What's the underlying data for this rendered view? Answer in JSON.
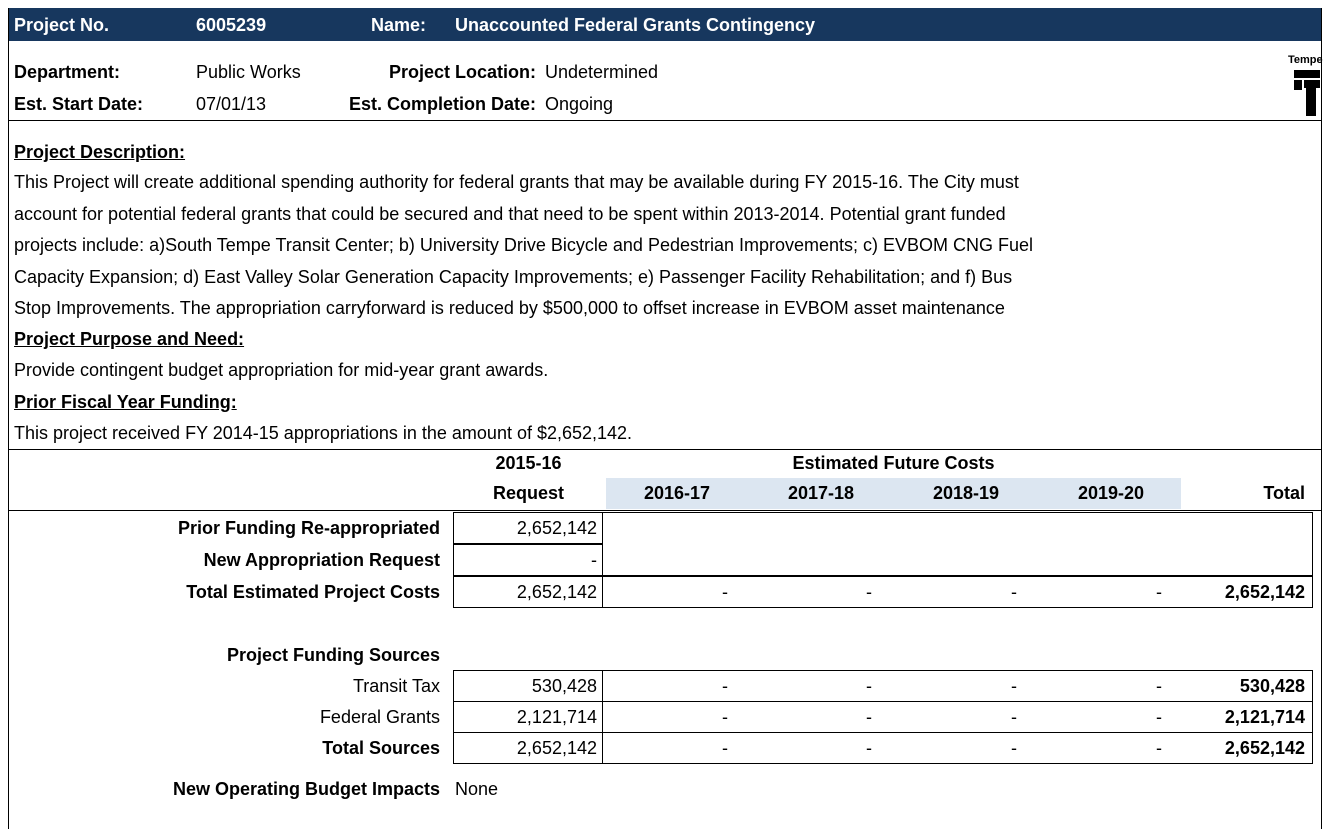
{
  "header": {
    "project_no_label": "Project No.",
    "project_no": "6005239",
    "name_label": "Name:",
    "name": "Unaccounted Federal Grants Contingency"
  },
  "info": {
    "department_label": "Department:",
    "department": "Public Works",
    "location_label": "Project Location:",
    "location": "Undetermined",
    "start_label": "Est. Start Date:",
    "start": "07/01/13",
    "completion_label": "Est. Completion Date:",
    "completion": "Ongoing",
    "logo": "Tempe"
  },
  "description": {
    "heading": "Project Description:",
    "lines": [
      "This Project will create additional spending authority for federal grants that may be available during FY 2015-16.  The City must",
      "account for potential federal grants that could be secured and that need to be spent within 2013-2014.  Potential grant funded",
      "projects include: a)South Tempe Transit Center; b) University Drive Bicycle and Pedestrian Improvements; c) EVBOM CNG Fuel",
      "Capacity Expansion; d) East Valley Solar Generation Capacity Improvements; e) Passenger Facility Rehabilitation; and f) Bus",
      "Stop Improvements.  The appropriation carryforward is reduced by $500,000 to offset increase in EVBOM asset maintenance"
    ]
  },
  "purpose": {
    "heading": "Project Purpose and Need:",
    "text": "Provide contingent budget appropriation for mid-year grant awards."
  },
  "prior": {
    "heading": "Prior Fiscal Year Funding:",
    "text": "This project received FY 2014-15 appropriations in the amount of $2,652,142."
  },
  "table": {
    "request_year": "2015-16",
    "request_label": "Request",
    "future_label": "Estimated Future Costs",
    "years": [
      "2016-17",
      "2017-18",
      "2018-19",
      "2019-20"
    ],
    "total_label": "Total",
    "rows": [
      {
        "label": "Prior Funding Re-appropriated",
        "bold": true,
        "request": "2,652,142"
      },
      {
        "label": "New Appropriation Request",
        "bold": true,
        "request": "-"
      },
      {
        "label": "Total Estimated Project Costs",
        "bold": true,
        "request": "2,652,142",
        "future": [
          "-",
          "-",
          "-",
          "-"
        ],
        "total": "2,652,142"
      },
      {
        "label": "Project Funding Sources",
        "bold": true
      },
      {
        "label": "Transit Tax",
        "bold": false,
        "request": "530,428",
        "future": [
          "-",
          "-",
          "-",
          "-"
        ],
        "total": "530,428"
      },
      {
        "label": "Federal Grants",
        "bold": false,
        "request": "2,121,714",
        "future": [
          "-",
          "-",
          "-",
          "-"
        ],
        "total": "2,121,714"
      },
      {
        "label": "Total Sources",
        "bold": true,
        "request": "2,652,142",
        "future": [
          "-",
          "-",
          "-",
          "-"
        ],
        "total": "2,652,142"
      },
      {
        "label": "New Operating Budget Impacts",
        "bold": true,
        "note": "None"
      }
    ]
  }
}
